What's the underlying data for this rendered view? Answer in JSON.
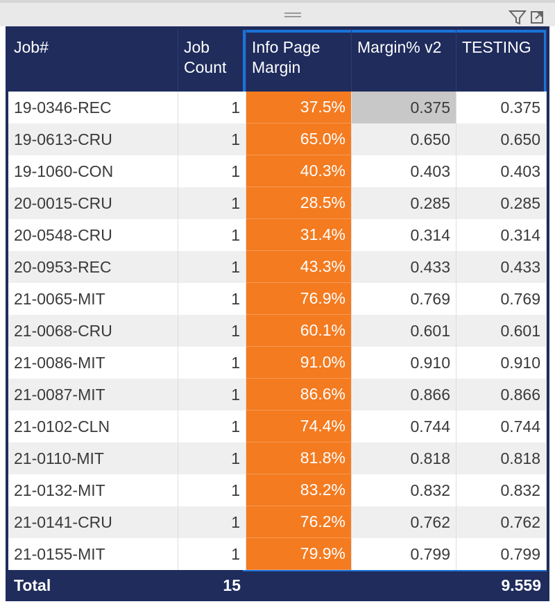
{
  "table": {
    "columns": [
      "Job#",
      "Job Count",
      "Info Page Margin",
      "Margin% v2",
      "TESTING"
    ],
    "rows": [
      [
        "19-0346-REC",
        "1",
        "37.5%",
        "0.375",
        "0.375"
      ],
      [
        "19-0613-CRU",
        "1",
        "65.0%",
        "0.650",
        "0.650"
      ],
      [
        "19-1060-CON",
        "1",
        "40.3%",
        "0.403",
        "0.403"
      ],
      [
        "20-0015-CRU",
        "1",
        "28.5%",
        "0.285",
        "0.285"
      ],
      [
        "20-0548-CRU",
        "1",
        "31.4%",
        "0.314",
        "0.314"
      ],
      [
        "20-0953-REC",
        "1",
        "43.3%",
        "0.433",
        "0.433"
      ],
      [
        "21-0065-MIT",
        "1",
        "76.9%",
        "0.769",
        "0.769"
      ],
      [
        "21-0068-CRU",
        "1",
        "60.1%",
        "0.601",
        "0.601"
      ],
      [
        "21-0086-MIT",
        "1",
        "91.0%",
        "0.910",
        "0.910"
      ],
      [
        "21-0087-MIT",
        "1",
        "86.6%",
        "0.866",
        "0.866"
      ],
      [
        "21-0102-CLN",
        "1",
        "74.4%",
        "0.744",
        "0.744"
      ],
      [
        "21-0110-MIT",
        "1",
        "81.8%",
        "0.818",
        "0.818"
      ],
      [
        "21-0132-MIT",
        "1",
        "83.2%",
        "0.832",
        "0.832"
      ],
      [
        "21-0141-CRU",
        "1",
        "76.2%",
        "0.762",
        "0.762"
      ],
      [
        "21-0155-MIT",
        "1",
        "79.9%",
        "0.799",
        "0.799"
      ]
    ],
    "total": {
      "label": "Total",
      "job_count": "15",
      "testing": "9.559"
    }
  }
}
